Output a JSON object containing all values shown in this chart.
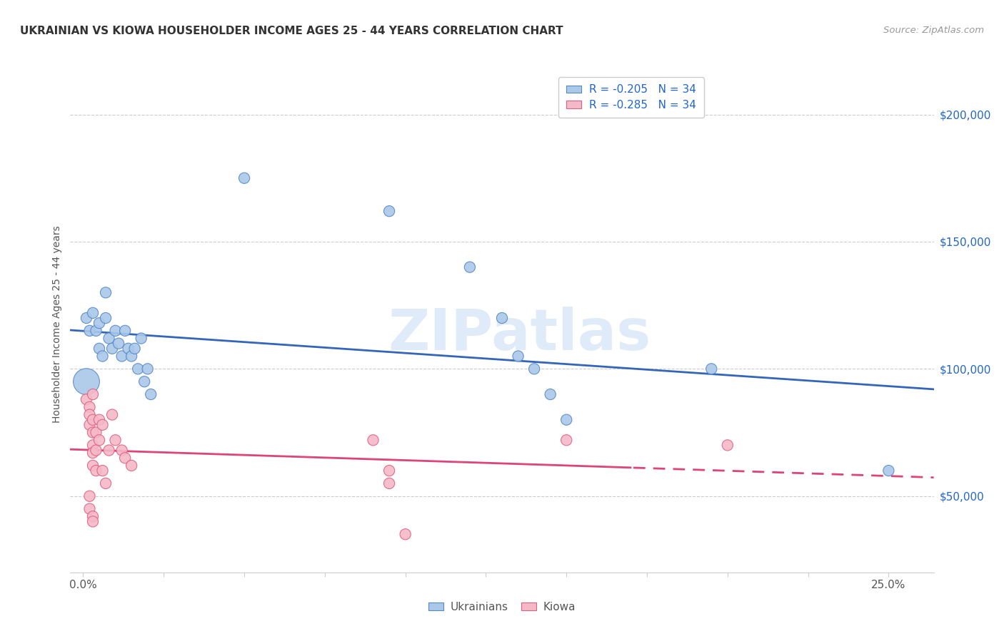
{
  "title": "UKRAINIAN VS KIOWA HOUSEHOLDER INCOME AGES 25 - 44 YEARS CORRELATION CHART",
  "source": "Source: ZipAtlas.com",
  "xlabel_edge_left": "0.0%",
  "xlabel_edge_right": "25.0%",
  "xlabel_vals": [
    0.0,
    0.025,
    0.05,
    0.075,
    0.1,
    0.125,
    0.15,
    0.175,
    0.2,
    0.225,
    0.25
  ],
  "ylabel": "Householder Income Ages 25 - 44 years",
  "ylabel_ticks_labels": [
    "$50,000",
    "$100,000",
    "$150,000",
    "$200,000"
  ],
  "ylabel_ticks_vals": [
    50000,
    100000,
    150000,
    200000
  ],
  "ylim": [
    20000,
    215000
  ],
  "xlim": [
    -0.004,
    0.264
  ],
  "legend_blue": "R = -0.205   N = 34",
  "legend_pink": "R = -0.285   N = 34",
  "legend_label_blue": "Ukrainians",
  "legend_label_pink": "Kiowa",
  "watermark": "ZIPatlas",
  "blue_fill": "#aac8e8",
  "blue_edge": "#5588cc",
  "pink_fill": "#f4b8c8",
  "pink_edge": "#e06080",
  "blue_line_color": "#3366bb",
  "pink_line_color": "#dd4477",
  "grid_color": "#cccccc",
  "blue_scatter": [
    [
      0.001,
      120000
    ],
    [
      0.002,
      115000
    ],
    [
      0.003,
      122000
    ],
    [
      0.004,
      115000
    ],
    [
      0.005,
      108000
    ],
    [
      0.005,
      118000
    ],
    [
      0.006,
      105000
    ],
    [
      0.007,
      130000
    ],
    [
      0.007,
      120000
    ],
    [
      0.008,
      112000
    ],
    [
      0.009,
      108000
    ],
    [
      0.01,
      115000
    ],
    [
      0.011,
      110000
    ],
    [
      0.012,
      105000
    ],
    [
      0.013,
      115000
    ],
    [
      0.014,
      108000
    ],
    [
      0.015,
      105000
    ],
    [
      0.016,
      108000
    ],
    [
      0.017,
      100000
    ],
    [
      0.018,
      112000
    ],
    [
      0.019,
      95000
    ],
    [
      0.02,
      100000
    ],
    [
      0.021,
      90000
    ],
    [
      0.001,
      95000
    ],
    [
      0.05,
      175000
    ],
    [
      0.095,
      162000
    ],
    [
      0.12,
      140000
    ],
    [
      0.13,
      120000
    ],
    [
      0.135,
      105000
    ],
    [
      0.14,
      100000
    ],
    [
      0.145,
      90000
    ],
    [
      0.15,
      80000
    ],
    [
      0.195,
      100000
    ],
    [
      0.25,
      60000
    ]
  ],
  "pink_scatter": [
    [
      0.001,
      88000
    ],
    [
      0.002,
      85000
    ],
    [
      0.002,
      82000
    ],
    [
      0.002,
      78000
    ],
    [
      0.003,
      90000
    ],
    [
      0.003,
      80000
    ],
    [
      0.003,
      75000
    ],
    [
      0.003,
      70000
    ],
    [
      0.003,
      67000
    ],
    [
      0.003,
      62000
    ],
    [
      0.004,
      75000
    ],
    [
      0.004,
      68000
    ],
    [
      0.004,
      60000
    ],
    [
      0.005,
      80000
    ],
    [
      0.005,
      72000
    ],
    [
      0.006,
      78000
    ],
    [
      0.006,
      60000
    ],
    [
      0.007,
      55000
    ],
    [
      0.008,
      68000
    ],
    [
      0.009,
      82000
    ],
    [
      0.01,
      72000
    ],
    [
      0.012,
      68000
    ],
    [
      0.013,
      65000
    ],
    [
      0.015,
      62000
    ],
    [
      0.002,
      50000
    ],
    [
      0.002,
      45000
    ],
    [
      0.003,
      42000
    ],
    [
      0.003,
      40000
    ],
    [
      0.09,
      72000
    ],
    [
      0.095,
      60000
    ],
    [
      0.095,
      55000
    ],
    [
      0.1,
      35000
    ],
    [
      0.15,
      72000
    ],
    [
      0.2,
      70000
    ]
  ],
  "blue_sizes_uniform": 120,
  "blue_large_idx": 23,
  "blue_large_size": 700,
  "pink_sizes_uniform": 120
}
